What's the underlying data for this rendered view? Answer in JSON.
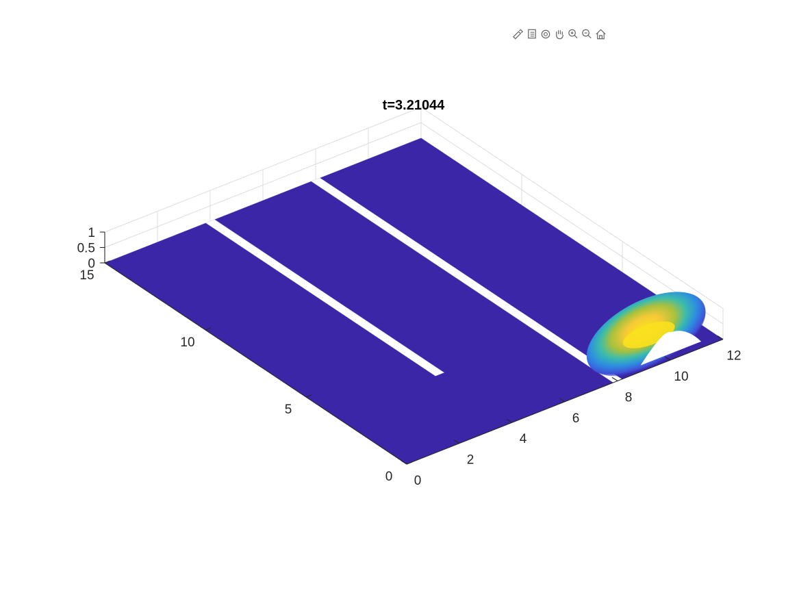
{
  "toolbar": {
    "items": [
      {
        "icon": "brush-icon"
      },
      {
        "icon": "legend-icon"
      },
      {
        "icon": "rotate-3d-icon"
      },
      {
        "icon": "pan-hand-icon"
      },
      {
        "icon": "zoom-in-icon"
      },
      {
        "icon": "zoom-out-icon"
      },
      {
        "icon": "home-icon"
      }
    ]
  },
  "chart_data": {
    "type": "surface",
    "title": "t=3.21044",
    "xlabel": "",
    "ylabel": "",
    "zlabel": "",
    "xlim": [
      0,
      12
    ],
    "ylim": [
      0,
      15
    ],
    "zlim": [
      0,
      1
    ],
    "x_ticks": [
      "0",
      "2",
      "4",
      "6",
      "8",
      "10",
      "12"
    ],
    "y_ticks": [
      "0",
      "5",
      "10",
      "15"
    ],
    "z_ticks": [
      "0",
      "0.5",
      "1"
    ],
    "grid": true,
    "colormap": "parula",
    "base_color": "#3c26a8",
    "walls": [
      {
        "x": 8,
        "y_from": 0,
        "y_to": 15
      },
      {
        "x": 4,
        "y_from": 3.6,
        "y_to": 15
      }
    ],
    "peak": {
      "x": 10.2,
      "y": 1.6,
      "z": 0.9
    }
  }
}
